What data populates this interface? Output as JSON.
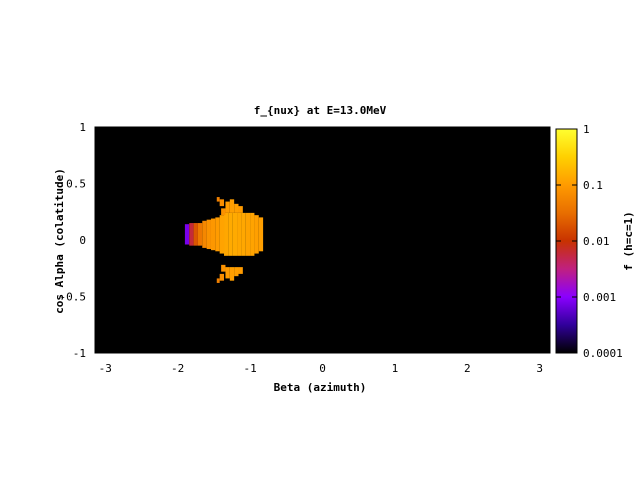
{
  "chart_data": {
    "type": "heatmap",
    "title": "f_{nux} at E=13.0MeV",
    "xlabel": "Beta (azimuth)",
    "ylabel": "cos Alpha (colatitude)",
    "xlim": [
      -3.14159,
      3.14159
    ],
    "ylim": [
      -1,
      1
    ],
    "xticks": [
      "-3",
      "-2",
      "-1",
      "0",
      "1",
      "2",
      "3"
    ],
    "xtick_values": [
      -3,
      -2,
      -1,
      0,
      1,
      2,
      3
    ],
    "yticks": [
      "1",
      "0.5",
      "0",
      "-0.5",
      "-1"
    ],
    "ytick_values": [
      1,
      0.5,
      0,
      -0.5,
      -1
    ],
    "colorbar": {
      "label": "f (h=c=1)",
      "scale": "log",
      "range": [
        0.0001,
        1
      ],
      "ticks": [
        "1",
        "0.1",
        "0.01",
        "0.001",
        "0.0001"
      ],
      "tick_values": [
        1,
        0.1,
        0.01,
        0.001,
        0.0001
      ],
      "palette": [
        "#000000",
        "#30009a",
        "#8a00ff",
        "#c02080",
        "#c83200",
        "#e86e00",
        "#ff9b00",
        "#ffd000",
        "#ffff30"
      ]
    },
    "background_value": 0.0001,
    "grid": false,
    "cells": [
      {
        "beta": -1.9,
        "mu": -0.04,
        "w": 0.06,
        "h": 0.18,
        "f": 0.0008
      },
      {
        "beta": -1.84,
        "mu": -0.05,
        "w": 0.06,
        "h": 0.2,
        "f": 0.006
      },
      {
        "beta": -1.78,
        "mu": -0.05,
        "w": 0.06,
        "h": 0.2,
        "f": 0.02
      },
      {
        "beta": -1.72,
        "mu": -0.05,
        "w": 0.06,
        "h": 0.2,
        "f": 0.04
      },
      {
        "beta": -1.66,
        "mu": -0.07,
        "w": 0.06,
        "h": 0.24,
        "f": 0.06
      },
      {
        "beta": -1.6,
        "mu": -0.08,
        "w": 0.06,
        "h": 0.26,
        "f": 0.08
      },
      {
        "beta": -1.54,
        "mu": -0.09,
        "w": 0.06,
        "h": 0.28,
        "f": 0.09
      },
      {
        "beta": -1.48,
        "mu": -0.1,
        "w": 0.06,
        "h": 0.3,
        "f": 0.1
      },
      {
        "beta": -1.42,
        "mu": -0.12,
        "w": 0.06,
        "h": 0.34,
        "f": 0.12
      },
      {
        "beta": -1.36,
        "mu": -0.14,
        "w": 0.06,
        "h": 0.38,
        "f": 0.13
      },
      {
        "beta": -1.3,
        "mu": -0.14,
        "w": 0.06,
        "h": 0.38,
        "f": 0.14
      },
      {
        "beta": -1.24,
        "mu": -0.14,
        "w": 0.06,
        "h": 0.38,
        "f": 0.14
      },
      {
        "beta": -1.18,
        "mu": -0.14,
        "w": 0.06,
        "h": 0.38,
        "f": 0.13
      },
      {
        "beta": -1.12,
        "mu": -0.14,
        "w": 0.06,
        "h": 0.38,
        "f": 0.13
      },
      {
        "beta": -1.06,
        "mu": -0.14,
        "w": 0.06,
        "h": 0.38,
        "f": 0.12
      },
      {
        "beta": -1.0,
        "mu": -0.14,
        "w": 0.06,
        "h": 0.38,
        "f": 0.12
      },
      {
        "beta": -0.94,
        "mu": -0.12,
        "w": 0.06,
        "h": 0.34,
        "f": 0.11
      },
      {
        "beta": -0.88,
        "mu": -0.1,
        "w": 0.06,
        "h": 0.3,
        "f": 0.11
      },
      {
        "beta": -1.4,
        "mu": 0.22,
        "w": 0.06,
        "h": 0.06,
        "f": 0.08
      },
      {
        "beta": -1.34,
        "mu": 0.24,
        "w": 0.06,
        "h": 0.1,
        "f": 0.1
      },
      {
        "beta": -1.28,
        "mu": 0.24,
        "w": 0.06,
        "h": 0.12,
        "f": 0.11
      },
      {
        "beta": -1.22,
        "mu": 0.24,
        "w": 0.06,
        "h": 0.08,
        "f": 0.11
      },
      {
        "beta": -1.16,
        "mu": 0.24,
        "w": 0.06,
        "h": 0.06,
        "f": 0.1
      },
      {
        "beta": -1.42,
        "mu": 0.3,
        "w": 0.06,
        "h": 0.06,
        "f": 0.07
      },
      {
        "beta": -1.46,
        "mu": 0.34,
        "w": 0.04,
        "h": 0.04,
        "f": 0.05
      },
      {
        "beta": -1.4,
        "mu": -0.28,
        "w": 0.06,
        "h": 0.06,
        "f": 0.08
      },
      {
        "beta": -1.34,
        "mu": -0.34,
        "w": 0.06,
        "h": 0.1,
        "f": 0.1
      },
      {
        "beta": -1.28,
        "mu": -0.36,
        "w": 0.06,
        "h": 0.12,
        "f": 0.11
      },
      {
        "beta": -1.22,
        "mu": -0.32,
        "w": 0.06,
        "h": 0.08,
        "f": 0.11
      },
      {
        "beta": -1.16,
        "mu": -0.3,
        "w": 0.06,
        "h": 0.06,
        "f": 0.1
      },
      {
        "beta": -1.42,
        "mu": -0.36,
        "w": 0.06,
        "h": 0.06,
        "f": 0.07
      },
      {
        "beta": -1.46,
        "mu": -0.38,
        "w": 0.04,
        "h": 0.04,
        "f": 0.05
      }
    ]
  }
}
